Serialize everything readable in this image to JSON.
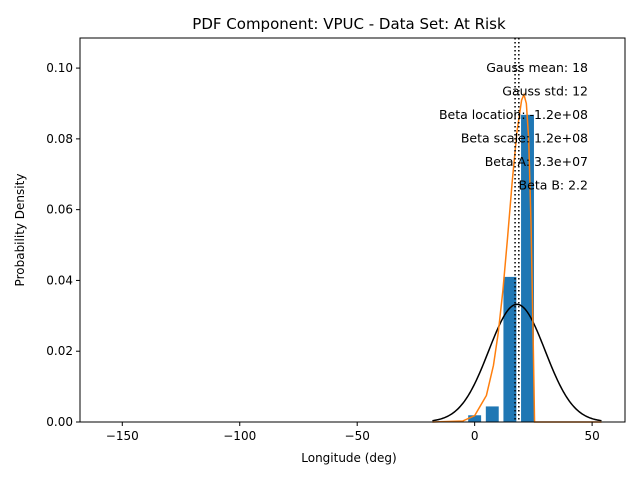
{
  "chart_data": {
    "type": "bar",
    "title": "PDF Component: VPUC - Data Set: At Risk",
    "xlabel": "Longitude (deg)",
    "ylabel": "Probability Density",
    "xlim": [
      -168,
      64
    ],
    "ylim": [
      0,
      0.1085
    ],
    "x_ticks": [
      -150,
      -100,
      -50,
      0,
      50
    ],
    "y_ticks": [
      0.0,
      0.02,
      0.04,
      0.06,
      0.08,
      0.1
    ],
    "x_tick_labels": [
      "−150",
      "−100",
      "−50",
      "0",
      "50"
    ],
    "y_tick_labels": [
      "0.00",
      "0.02",
      "0.04",
      "0.06",
      "0.08",
      "0.10"
    ],
    "grid": false,
    "histogram": {
      "bar_width": 5.5,
      "bars": [
        {
          "x": -156,
          "value": 0.0001
        },
        {
          "x": -141,
          "value": 0.0001
        },
        {
          "x": -118.5,
          "value": 0.0001
        },
        {
          "x": -103.5,
          "value": 0.0001
        },
        {
          "x": -60,
          "value": 0.0001
        },
        {
          "x": -37.5,
          "value": 0.0001
        },
        {
          "x": -22.5,
          "value": 0.0001
        },
        {
          "x": 0,
          "value": 0.0019
        },
        {
          "x": 7.5,
          "value": 0.0044
        },
        {
          "x": 15,
          "value": 0.041
        },
        {
          "x": 22.5,
          "value": 0.0868
        }
      ],
      "color": "#1f77b4"
    },
    "series": [
      {
        "kind": "gaussian",
        "mean": 18,
        "std": 12,
        "x_range": [
          -18,
          54
        ],
        "color": "#000000"
      },
      {
        "kind": "beta-curve",
        "color": "#ff7f0e",
        "points": [
          [
            -18,
            0
          ],
          [
            -5,
            0.0003
          ],
          [
            0,
            0.0018
          ],
          [
            5,
            0.0075
          ],
          [
            8,
            0.016
          ],
          [
            10,
            0.025
          ],
          [
            12,
            0.037
          ],
          [
            14,
            0.052
          ],
          [
            16,
            0.068
          ],
          [
            18,
            0.082
          ],
          [
            20,
            0.091
          ],
          [
            21,
            0.0925
          ],
          [
            22,
            0.09
          ],
          [
            23,
            0.08
          ],
          [
            24,
            0.056
          ],
          [
            25,
            0.02
          ],
          [
            25.5,
            0
          ],
          [
            54,
            0
          ]
        ]
      }
    ],
    "vlines": [
      {
        "x": 17.2,
        "style": "dotted",
        "color": "#000000"
      },
      {
        "x": 18.8,
        "style": "dotted",
        "color": "#000000"
      }
    ],
    "annotations": [
      "Gauss mean: 18",
      "Gauss std: 12",
      "Beta location: -1.2e+08",
      "Beta scale: 1.2e+08",
      "Beta A: 3.3e+07",
      "Beta B: 2.2"
    ]
  }
}
